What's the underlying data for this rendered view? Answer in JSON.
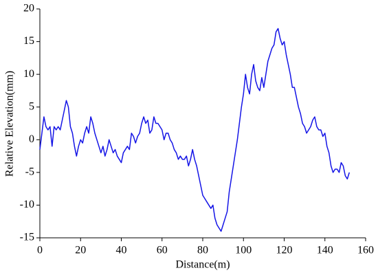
{
  "chart_data": {
    "type": "line",
    "x_label": "Distance(m)",
    "y_label": "Relative Elevation(mm)",
    "x": [
      0,
      1,
      2,
      3,
      4,
      5,
      6,
      7,
      8,
      9,
      10,
      11,
      12,
      13,
      14,
      15,
      16,
      17,
      18,
      19,
      20,
      21,
      22,
      23,
      24,
      25,
      26,
      27,
      28,
      29,
      30,
      31,
      32,
      33,
      34,
      35,
      36,
      37,
      38,
      39,
      40,
      41,
      42,
      43,
      44,
      45,
      46,
      47,
      48,
      49,
      50,
      51,
      52,
      53,
      54,
      55,
      56,
      57,
      58,
      59,
      60,
      61,
      62,
      63,
      64,
      65,
      66,
      67,
      68,
      69,
      70,
      71,
      72,
      73,
      74,
      75,
      76,
      77,
      78,
      79,
      80,
      81,
      82,
      83,
      84,
      85,
      86,
      87,
      88,
      89,
      90,
      91,
      92,
      93,
      94,
      95,
      96,
      97,
      98,
      99,
      100,
      101,
      102,
      103,
      104,
      105,
      106,
      107,
      108,
      109,
      110,
      111,
      112,
      113,
      114,
      115,
      116,
      117,
      118,
      119,
      120,
      121,
      122,
      123,
      124,
      125,
      126,
      127,
      128,
      129,
      130,
      131,
      132,
      133,
      134,
      135,
      136,
      137,
      138,
      139,
      140,
      141,
      142,
      143,
      144,
      145,
      146,
      147,
      148,
      149,
      150,
      151,
      152
    ],
    "series": [
      {
        "color": "#1414e6",
        "values": [
          -1.5,
          1,
          3.5,
          2,
          1.5,
          2,
          -1,
          2,
          1.5,
          2,
          1.5,
          3,
          4.5,
          6,
          5,
          2,
          1,
          -1,
          -2.5,
          -1,
          0,
          -0.5,
          1,
          2,
          1,
          3.5,
          2.5,
          1,
          0,
          -1,
          -2,
          -1,
          -2.5,
          -1.5,
          0,
          -1,
          -2,
          -1.5,
          -2.5,
          -3,
          -3.5,
          -2,
          -1.5,
          -1,
          -1.5,
          1,
          0.5,
          -0.5,
          0.5,
          1,
          2.5,
          3.5,
          2.5,
          3,
          1,
          1.5,
          3.5,
          2.5,
          2.5,
          2,
          1.5,
          0,
          1,
          1,
          0,
          -0.5,
          -1.5,
          -2,
          -3,
          -2.5,
          -3,
          -3,
          -2.5,
          -4,
          -3,
          -1.5,
          -3,
          -4,
          -5.5,
          -7,
          -8.5,
          -9,
          -9.5,
          -10,
          -10.5,
          -10,
          -12,
          -13,
          -13.5,
          -14,
          -13,
          -12,
          -11,
          -8,
          -6,
          -4,
          -2,
          0,
          2.5,
          5,
          7,
          10,
          8,
          7,
          10,
          11.5,
          9,
          8,
          7.5,
          9.5,
          8,
          10,
          12,
          13,
          14,
          14.5,
          16.5,
          17,
          15.5,
          14.5,
          15,
          13,
          11.5,
          10,
          8,
          8,
          6.5,
          5,
          4,
          2.5,
          2,
          1,
          1.5,
          2,
          3,
          3.5,
          2,
          1.5,
          1.5,
          0.5,
          1,
          -1,
          -2,
          -4,
          -5,
          -4.5,
          -4.5,
          -5,
          -3.5,
          -4,
          -5.5,
          -6,
          -5
        ]
      }
    ],
    "xlim": [
      0,
      160
    ],
    "xticks": [
      0,
      20,
      40,
      60,
      80,
      100,
      120,
      140,
      160
    ],
    "ylim": [
      -15,
      20
    ],
    "yticks": [
      -15,
      -10,
      -5,
      0,
      5,
      10,
      15,
      20
    ]
  }
}
